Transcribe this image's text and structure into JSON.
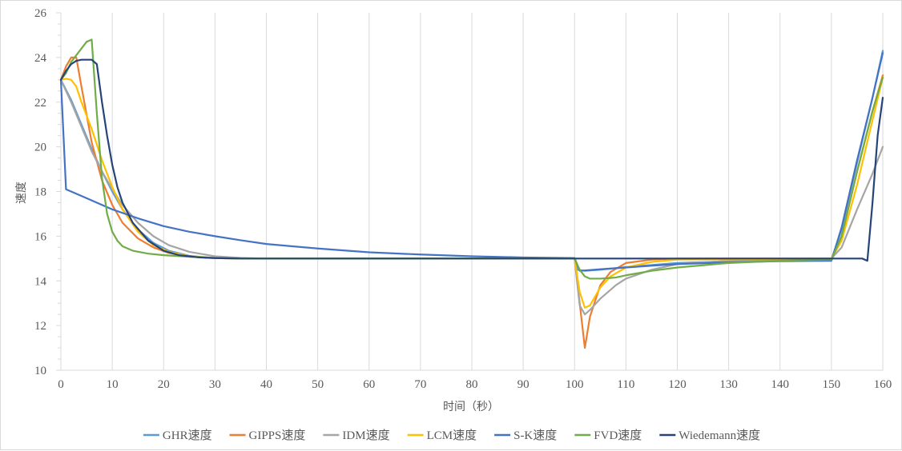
{
  "chart_data": {
    "type": "line",
    "title": "",
    "xlabel": "时间（秒）",
    "ylabel": "速度",
    "xlim": [
      0,
      160
    ],
    "ylim": [
      10,
      26
    ],
    "xticks": [
      0,
      10,
      20,
      30,
      40,
      50,
      60,
      70,
      80,
      90,
      100,
      110,
      120,
      130,
      140,
      150,
      160
    ],
    "yticks": [
      10,
      12,
      14,
      16,
      18,
      20,
      22,
      24,
      26
    ],
    "grid": "vertical",
    "legend_position": "bottom",
    "series": [
      {
        "name": "GHR速度",
        "color": "#5b9bd5",
        "points": [
          [
            0,
            23
          ],
          [
            2,
            22.1
          ],
          [
            4,
            21
          ],
          [
            6,
            19.9
          ],
          [
            8,
            18.9
          ],
          [
            10,
            18
          ],
          [
            12,
            17.2
          ],
          [
            15,
            16.3
          ],
          [
            18,
            15.7
          ],
          [
            21,
            15.35
          ],
          [
            25,
            15.12
          ],
          [
            30,
            15.02
          ],
          [
            35,
            15
          ],
          [
            100,
            15
          ],
          [
            100.5,
            14.5
          ],
          [
            102,
            14.45
          ],
          [
            105,
            14.5
          ],
          [
            110,
            14.62
          ],
          [
            120,
            14.8
          ],
          [
            130,
            14.88
          ],
          [
            140,
            14.92
          ],
          [
            150,
            14.95
          ],
          [
            152,
            16.3
          ],
          [
            155,
            19.3
          ],
          [
            158,
            22.2
          ],
          [
            160,
            24.3
          ]
        ]
      },
      {
        "name": "GIPPS速度",
        "color": "#ed7d31",
        "points": [
          [
            0,
            23
          ],
          [
            1,
            23.6
          ],
          [
            2,
            24
          ],
          [
            3,
            24
          ],
          [
            4,
            22.7
          ],
          [
            6,
            20.2
          ],
          [
            8,
            18.5
          ],
          [
            10,
            17.4
          ],
          [
            12,
            16.6
          ],
          [
            15,
            15.9
          ],
          [
            18,
            15.5
          ],
          [
            21,
            15.25
          ],
          [
            25,
            15.08
          ],
          [
            30,
            15.02
          ],
          [
            35,
            15
          ],
          [
            100,
            15
          ],
          [
            101,
            13
          ],
          [
            102,
            11
          ],
          [
            103,
            12.4
          ],
          [
            105,
            13.8
          ],
          [
            107,
            14.4
          ],
          [
            110,
            14.8
          ],
          [
            115,
            14.95
          ],
          [
            120,
            15
          ],
          [
            150,
            15
          ],
          [
            152,
            16
          ],
          [
            155,
            18.9
          ],
          [
            158,
            21.6
          ],
          [
            160,
            23.2
          ]
        ]
      },
      {
        "name": "IDM速度",
        "color": "#a5a5a5",
        "points": [
          [
            0,
            23
          ],
          [
            2,
            22
          ],
          [
            4,
            20.9
          ],
          [
            6,
            19.8
          ],
          [
            8,
            18.9
          ],
          [
            10,
            18.1
          ],
          [
            12,
            17.4
          ],
          [
            15,
            16.6
          ],
          [
            18,
            16
          ],
          [
            21,
            15.6
          ],
          [
            25,
            15.3
          ],
          [
            30,
            15.1
          ],
          [
            35,
            15.03
          ],
          [
            40,
            15
          ],
          [
            100,
            15
          ],
          [
            101,
            12.9
          ],
          [
            102,
            12.5
          ],
          [
            103,
            12.7
          ],
          [
            105,
            13.2
          ],
          [
            108,
            13.8
          ],
          [
            110,
            14.1
          ],
          [
            115,
            14.5
          ],
          [
            120,
            14.75
          ],
          [
            130,
            14.9
          ],
          [
            140,
            14.95
          ],
          [
            150,
            15
          ],
          [
            152,
            15.5
          ],
          [
            155,
            17.2
          ],
          [
            158,
            18.8
          ],
          [
            160,
            20
          ]
        ]
      },
      {
        "name": "LCM速度",
        "color": "#ffc000",
        "points": [
          [
            0,
            23
          ],
          [
            1,
            23.05
          ],
          [
            2,
            23
          ],
          [
            3,
            22.7
          ],
          [
            4,
            22
          ],
          [
            6,
            20.8
          ],
          [
            8,
            19.4
          ],
          [
            10,
            18.2
          ],
          [
            12,
            17.2
          ],
          [
            15,
            16.2
          ],
          [
            18,
            15.6
          ],
          [
            21,
            15.3
          ],
          [
            25,
            15.1
          ],
          [
            30,
            15.02
          ],
          [
            35,
            15
          ],
          [
            100,
            15
          ],
          [
            101,
            13.5
          ],
          [
            102,
            12.8
          ],
          [
            103,
            12.9
          ],
          [
            105,
            13.7
          ],
          [
            107,
            14.2
          ],
          [
            110,
            14.6
          ],
          [
            115,
            14.85
          ],
          [
            120,
            14.95
          ],
          [
            150,
            15
          ],
          [
            152,
            15.8
          ],
          [
            155,
            18.3
          ],
          [
            158,
            21.2
          ],
          [
            160,
            23.1
          ]
        ]
      },
      {
        "name": "S-K速度",
        "color": "#4472c4",
        "points": [
          [
            0,
            23
          ],
          [
            1,
            18.1
          ],
          [
            3,
            17.9
          ],
          [
            6,
            17.6
          ],
          [
            10,
            17.2
          ],
          [
            15,
            16.8
          ],
          [
            20,
            16.45
          ],
          [
            25,
            16.2
          ],
          [
            30,
            16
          ],
          [
            35,
            15.82
          ],
          [
            40,
            15.65
          ],
          [
            50,
            15.45
          ],
          [
            60,
            15.28
          ],
          [
            70,
            15.18
          ],
          [
            80,
            15.1
          ],
          [
            90,
            15.05
          ],
          [
            100,
            15.02
          ],
          [
            101,
            14.45
          ],
          [
            105,
            14.52
          ],
          [
            110,
            14.6
          ],
          [
            115,
            14.68
          ],
          [
            120,
            14.75
          ],
          [
            130,
            14.83
          ],
          [
            140,
            14.88
          ],
          [
            150,
            14.9
          ],
          [
            152,
            16.4
          ],
          [
            155,
            19.4
          ],
          [
            158,
            22.2
          ],
          [
            160,
            24.2
          ]
        ]
      },
      {
        "name": "FVD速度",
        "color": "#70ad47",
        "points": [
          [
            0,
            23
          ],
          [
            1,
            23.3
          ],
          [
            2,
            23.8
          ],
          [
            3,
            24.1
          ],
          [
            4,
            24.4
          ],
          [
            5,
            24.7
          ],
          [
            6,
            24.8
          ],
          [
            7,
            21.5
          ],
          [
            8,
            18.6
          ],
          [
            9,
            17
          ],
          [
            10,
            16.2
          ],
          [
            11,
            15.8
          ],
          [
            12,
            15.55
          ],
          [
            14,
            15.35
          ],
          [
            17,
            15.22
          ],
          [
            20,
            15.15
          ],
          [
            25,
            15.08
          ],
          [
            30,
            15.03
          ],
          [
            35,
            15
          ],
          [
            100,
            15
          ],
          [
            101,
            14.5
          ],
          [
            102,
            14.2
          ],
          [
            103,
            14.1
          ],
          [
            105,
            14.1
          ],
          [
            108,
            14.15
          ],
          [
            110,
            14.25
          ],
          [
            115,
            14.45
          ],
          [
            120,
            14.6
          ],
          [
            130,
            14.8
          ],
          [
            140,
            14.9
          ],
          [
            150,
            14.95
          ],
          [
            152,
            16
          ],
          [
            155,
            18.9
          ],
          [
            158,
            21.6
          ],
          [
            160,
            23.1
          ]
        ]
      },
      {
        "name": "Wiedemann速度",
        "color": "#264478",
        "points": [
          [
            0,
            23
          ],
          [
            1,
            23.4
          ],
          [
            2,
            23.7
          ],
          [
            3,
            23.85
          ],
          [
            4,
            23.9
          ],
          [
            5,
            23.9
          ],
          [
            6,
            23.9
          ],
          [
            7,
            23.7
          ],
          [
            8,
            22
          ],
          [
            9,
            20.5
          ],
          [
            10,
            19.2
          ],
          [
            11,
            18.2
          ],
          [
            12,
            17.5
          ],
          [
            14,
            16.6
          ],
          [
            17,
            15.8
          ],
          [
            20,
            15.35
          ],
          [
            23,
            15.15
          ],
          [
            27,
            15.05
          ],
          [
            30,
            15.02
          ],
          [
            35,
            15
          ],
          [
            156,
            15
          ],
          [
            157,
            14.9
          ],
          [
            158,
            17.5
          ],
          [
            159,
            20.5
          ],
          [
            160,
            22.2
          ]
        ]
      }
    ]
  }
}
